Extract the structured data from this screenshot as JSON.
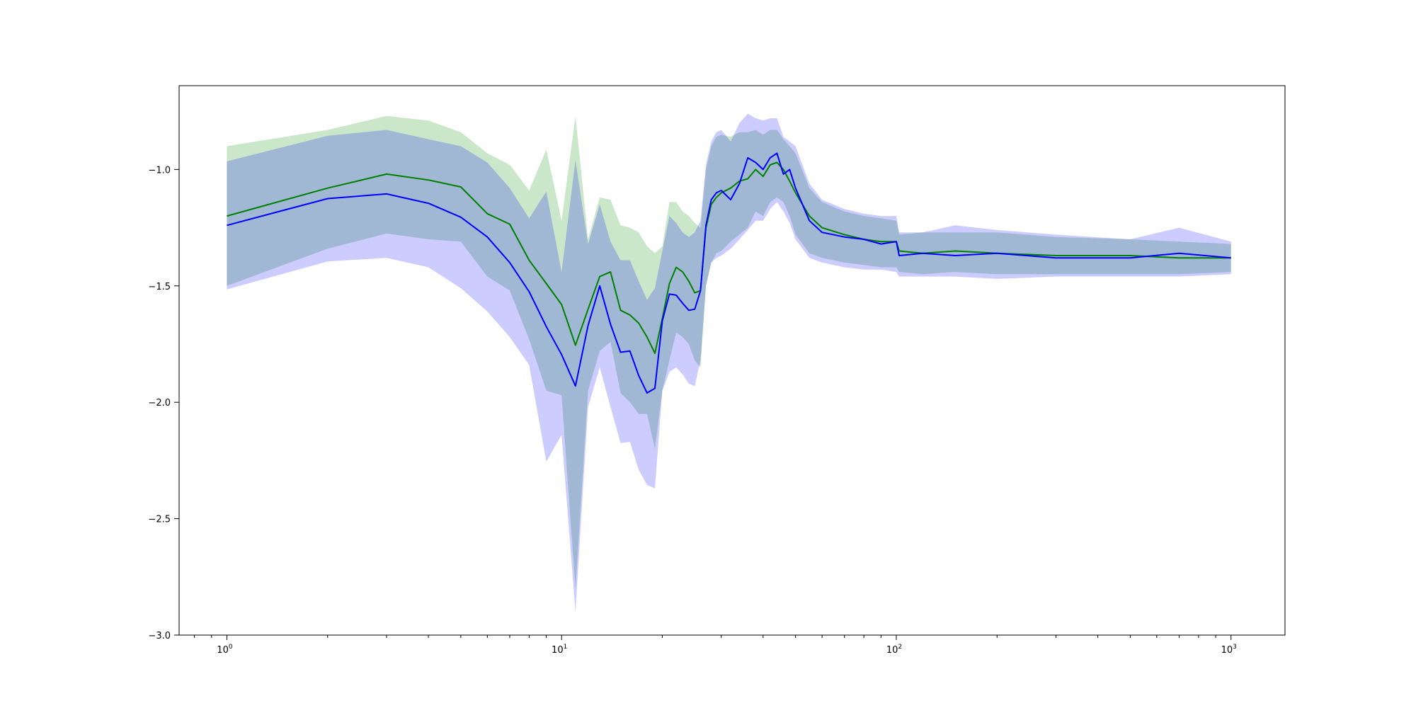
{
  "chart_data": {
    "type": "line",
    "title": "",
    "xlabel": "",
    "ylabel": "",
    "xscale": "log",
    "xlim": [
      0.72,
      1450
    ],
    "ylim": [
      -3.0,
      -0.64
    ],
    "grid": false,
    "legend": "none",
    "x_ticks": [
      {
        "value": 1,
        "base": "10",
        "exp": "0"
      },
      {
        "value": 10,
        "base": "10",
        "exp": "1"
      },
      {
        "value": 100,
        "base": "10",
        "exp": "2"
      },
      {
        "value": 1000,
        "base": "10",
        "exp": "3"
      }
    ],
    "y_ticks": [
      {
        "value": -1.0,
        "label": "−1.0"
      },
      {
        "value": -1.5,
        "label": "−1.5"
      },
      {
        "value": -2.0,
        "label": "−2.0"
      },
      {
        "value": -2.5,
        "label": "−2.5"
      },
      {
        "value": -3.0,
        "label": "−3.0"
      }
    ],
    "series": [
      {
        "color": "#008000",
        "band_color": "#2ca02c",
        "band_opacity": 0.25,
        "x": [
          1,
          2,
          3,
          4,
          5,
          6,
          7,
          8,
          9,
          10,
          11,
          12,
          13,
          14,
          15,
          16,
          17,
          18,
          19,
          20,
          21,
          22,
          23,
          24,
          25,
          26,
          27,
          28,
          29,
          30,
          32,
          34,
          36,
          38,
          40,
          42,
          44,
          46,
          48,
          50,
          55,
          60,
          70,
          80,
          90,
          100,
          102,
          120,
          150,
          200,
          300,
          500,
          700,
          1000
        ],
        "values": [
          -1.2,
          -1.08,
          -1.02,
          -1.045,
          -1.075,
          -1.19,
          -1.235,
          -1.39,
          -1.49,
          -1.58,
          -1.755,
          -1.6,
          -1.46,
          -1.44,
          -1.605,
          -1.625,
          -1.66,
          -1.72,
          -1.79,
          -1.64,
          -1.49,
          -1.42,
          -1.44,
          -1.48,
          -1.53,
          -1.52,
          -1.25,
          -1.15,
          -1.12,
          -1.1,
          -1.08,
          -1.05,
          -1.04,
          -1.0,
          -1.03,
          -0.98,
          -0.97,
          -1.0,
          -1.05,
          -1.1,
          -1.2,
          -1.25,
          -1.28,
          -1.3,
          -1.31,
          -1.31,
          -1.35,
          -1.36,
          -1.35,
          -1.36,
          -1.37,
          -1.37,
          -1.38,
          -1.38
        ],
        "lower": [
          -1.5,
          -1.34,
          -1.275,
          -1.3,
          -1.31,
          -1.46,
          -1.52,
          -1.73,
          -1.95,
          -1.97,
          -2.8,
          -1.95,
          -1.78,
          -1.74,
          -1.96,
          -2.0,
          -2.05,
          -2.05,
          -2.2,
          -1.95,
          -1.82,
          -1.7,
          -1.72,
          -1.75,
          -1.82,
          -1.85,
          -1.5,
          -1.4,
          -1.36,
          -1.35,
          -1.31,
          -1.28,
          -1.25,
          -1.18,
          -1.2,
          -1.14,
          -1.12,
          -1.14,
          -1.2,
          -1.28,
          -1.36,
          -1.38,
          -1.4,
          -1.41,
          -1.42,
          -1.42,
          -1.44,
          -1.45,
          -1.44,
          -1.45,
          -1.45,
          -1.45,
          -1.45,
          -1.44
        ],
        "upper": [
          -0.9,
          -0.83,
          -0.77,
          -0.79,
          -0.84,
          -0.93,
          -0.98,
          -1.09,
          -0.915,
          -1.22,
          -0.77,
          -1.3,
          -1.12,
          -1.13,
          -1.24,
          -1.25,
          -1.27,
          -1.33,
          -1.36,
          -1.33,
          -1.14,
          -1.14,
          -1.18,
          -1.2,
          -1.23,
          -1.25,
          -1.0,
          -0.9,
          -0.86,
          -0.85,
          -0.86,
          -0.84,
          -0.84,
          -0.83,
          -0.85,
          -0.83,
          -0.83,
          -0.87,
          -0.9,
          -0.93,
          -1.08,
          -1.14,
          -1.18,
          -1.2,
          -1.21,
          -1.22,
          -1.28,
          -1.27,
          -1.27,
          -1.27,
          -1.29,
          -1.3,
          -1.31,
          -1.32
        ]
      },
      {
        "color": "#0000ff",
        "band_color": "#0000ff",
        "band_opacity": 0.2,
        "x": [
          1,
          2,
          3,
          4,
          5,
          6,
          7,
          8,
          9,
          10,
          11,
          12,
          13,
          14,
          15,
          16,
          17,
          18,
          19,
          20,
          21,
          22,
          23,
          24,
          25,
          26,
          27,
          28,
          29,
          30,
          32,
          34,
          36,
          38,
          40,
          42,
          44,
          46,
          48,
          50,
          55,
          60,
          70,
          80,
          90,
          100,
          102,
          120,
          150,
          200,
          300,
          500,
          700,
          1000
        ],
        "values": [
          -1.24,
          -1.125,
          -1.105,
          -1.145,
          -1.205,
          -1.29,
          -1.4,
          -1.525,
          -1.675,
          -1.795,
          -1.93,
          -1.67,
          -1.5,
          -1.665,
          -1.785,
          -1.78,
          -1.885,
          -1.96,
          -1.94,
          -1.65,
          -1.535,
          -1.54,
          -1.575,
          -1.605,
          -1.6,
          -1.52,
          -1.24,
          -1.13,
          -1.1,
          -1.09,
          -1.13,
          -1.06,
          -0.95,
          -0.97,
          -1.0,
          -0.95,
          -0.93,
          -1.02,
          -1.0,
          -1.08,
          -1.22,
          -1.27,
          -1.29,
          -1.3,
          -1.32,
          -1.31,
          -1.37,
          -1.36,
          -1.37,
          -1.36,
          -1.38,
          -1.38,
          -1.36,
          -1.38
        ],
        "lower": [
          -1.515,
          -1.395,
          -1.38,
          -1.42,
          -1.51,
          -1.61,
          -1.72,
          -1.84,
          -2.255,
          -2.14,
          -2.9,
          -2.02,
          -1.85,
          -2.02,
          -2.175,
          -2.17,
          -2.29,
          -2.355,
          -2.37,
          -1.95,
          -1.87,
          -1.85,
          -1.88,
          -1.92,
          -1.93,
          -1.82,
          -1.5,
          -1.4,
          -1.38,
          -1.37,
          -1.34,
          -1.3,
          -1.26,
          -1.22,
          -1.22,
          -1.17,
          -1.14,
          -1.18,
          -1.23,
          -1.3,
          -1.38,
          -1.4,
          -1.42,
          -1.43,
          -1.43,
          -1.44,
          -1.46,
          -1.46,
          -1.46,
          -1.47,
          -1.46,
          -1.46,
          -1.46,
          -1.45
        ],
        "upper": [
          -0.965,
          -0.855,
          -0.83,
          -0.87,
          -0.9,
          -0.97,
          -1.08,
          -1.21,
          -1.095,
          -1.44,
          -0.96,
          -1.32,
          -1.15,
          -1.31,
          -1.39,
          -1.39,
          -1.48,
          -1.56,
          -1.51,
          -1.35,
          -1.2,
          -1.23,
          -1.27,
          -1.29,
          -1.27,
          -1.22,
          -0.98,
          -0.88,
          -0.84,
          -0.83,
          -0.88,
          -0.8,
          -0.76,
          -0.78,
          -0.79,
          -0.78,
          -0.78,
          -0.86,
          -0.88,
          -0.9,
          -1.06,
          -1.13,
          -1.17,
          -1.19,
          -1.2,
          -1.2,
          -1.27,
          -1.27,
          -1.24,
          -1.26,
          -1.28,
          -1.3,
          -1.25,
          -1.31
        ]
      }
    ]
  }
}
